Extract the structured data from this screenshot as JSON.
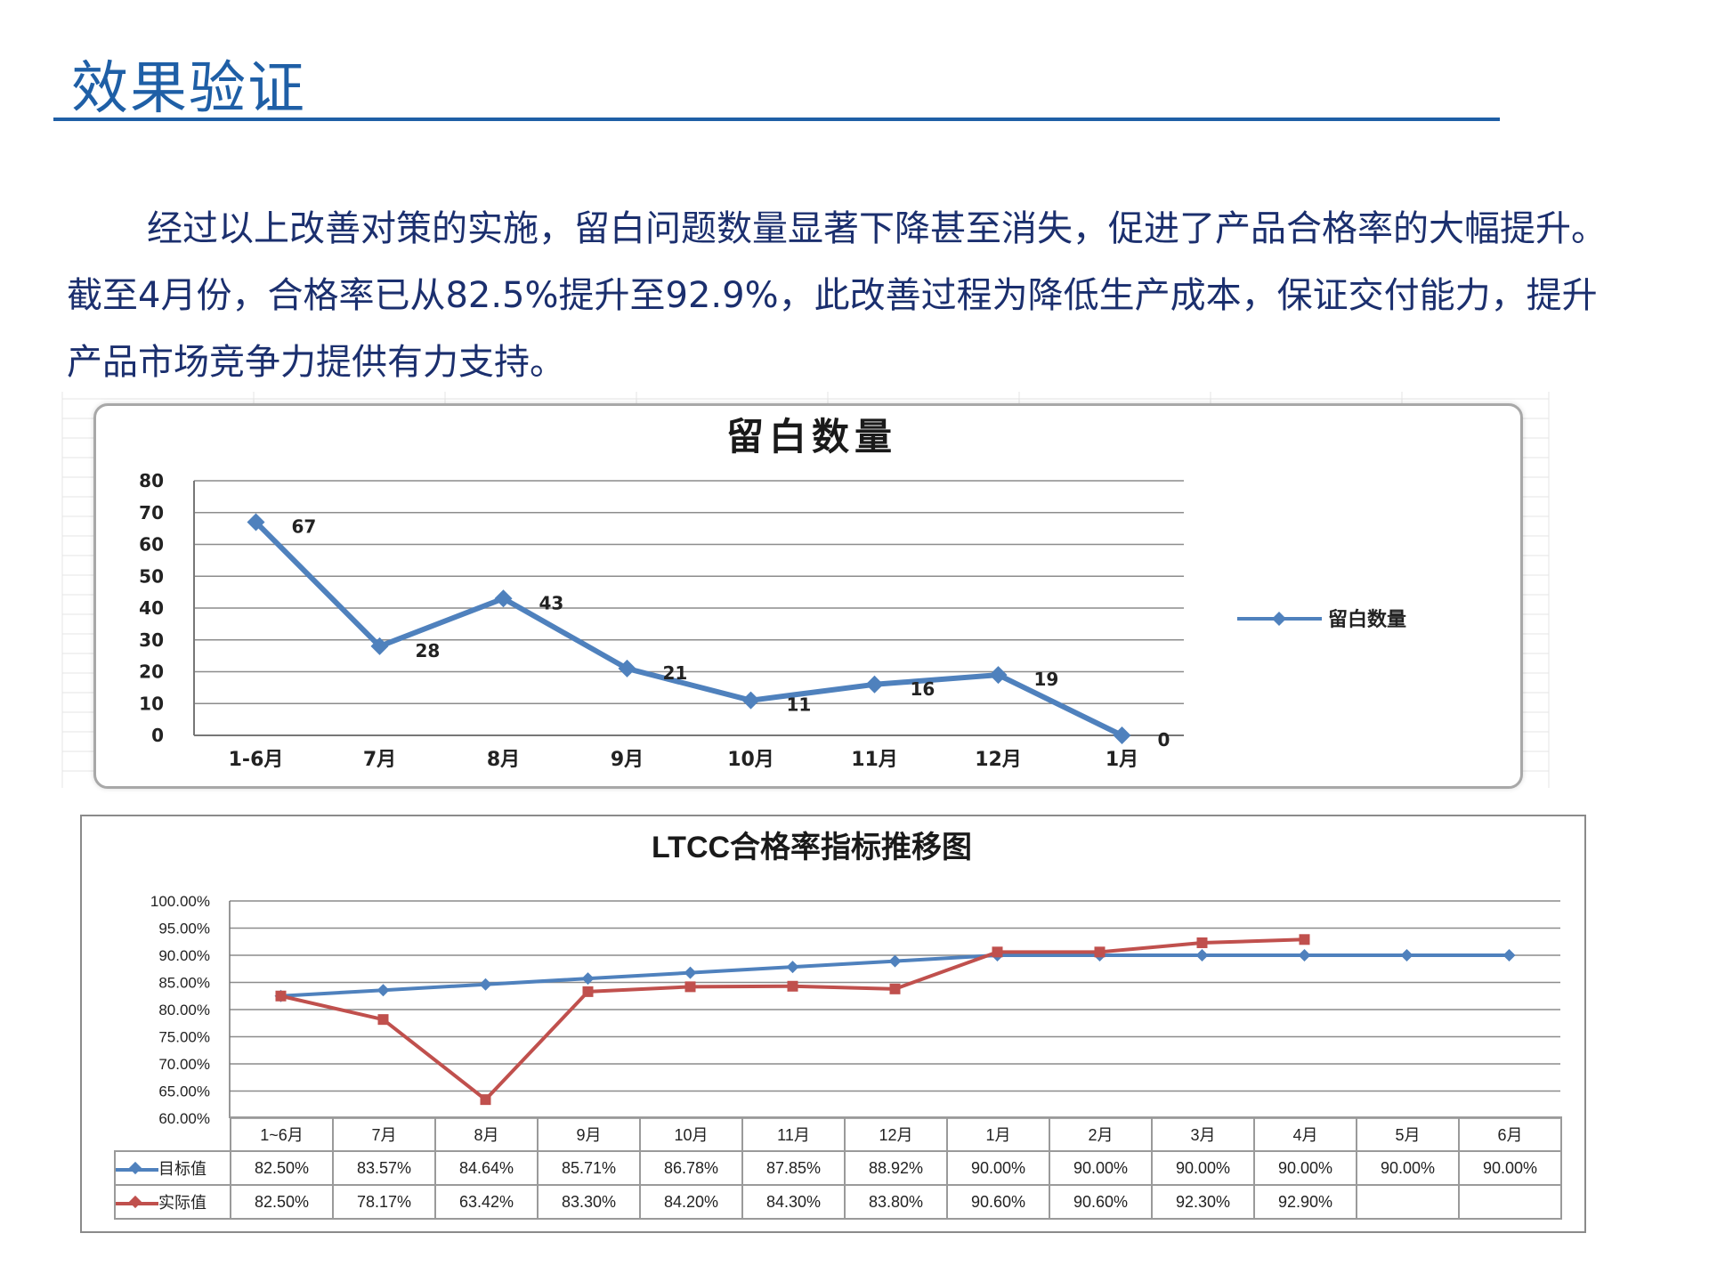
{
  "page": {
    "title": "效果验证",
    "paragraph": "经过以上改善对策的实施，留白问题数量显著下降甚至消失，促进了产品合格率的大幅提升。截至4月份，合格率已从82.5%提升至92.9%，此改善过程为降低生产成本，保证交付能力，提升产品市场竞争力提供有力支持。"
  },
  "colors": {
    "accent": "#1f5fa6",
    "text": "#1b2f6e",
    "series_blue": "#4f81bd",
    "series_red": "#c0504d"
  },
  "chart_data": [
    {
      "type": "line",
      "title": "留白数量",
      "categories": [
        "1-6月",
        "7月",
        "8月",
        "9月",
        "10月",
        "11月",
        "12月",
        "1月"
      ],
      "series": [
        {
          "name": "留白数量",
          "values": [
            67,
            28,
            43,
            21,
            11,
            16,
            19,
            0
          ]
        }
      ],
      "data_labels": [
        "67",
        "28",
        "43",
        "21",
        "11",
        "16",
        "19",
        "0"
      ],
      "ylim": [
        0,
        80
      ],
      "yticks": [
        "0",
        "10",
        "20",
        "30",
        "40",
        "50",
        "60",
        "70",
        "80"
      ],
      "grid": true,
      "legend": "right"
    },
    {
      "type": "line",
      "title": "LTCC合格率指标推移图",
      "categories": [
        "1~6月",
        "7月",
        "8月",
        "9月",
        "10月",
        "11月",
        "12月",
        "1月",
        "2月",
        "3月",
        "4月",
        "5月",
        "6月"
      ],
      "series": [
        {
          "name": "目标值",
          "values": [
            82.5,
            83.57,
            84.64,
            85.71,
            86.78,
            87.85,
            88.92,
            90.0,
            90.0,
            90.0,
            90.0,
            90.0,
            90.0
          ],
          "labels": [
            "82.50%",
            "83.57%",
            "84.64%",
            "85.71%",
            "86.78%",
            "87.85%",
            "88.92%",
            "90.00%",
            "90.00%",
            "90.00%",
            "90.00%",
            "90.00%",
            "90.00%"
          ]
        },
        {
          "name": "实际值",
          "values": [
            82.5,
            78.17,
            63.42,
            83.3,
            84.2,
            84.3,
            83.8,
            90.6,
            90.6,
            92.3,
            92.9,
            null,
            null
          ],
          "labels": [
            "82.50%",
            "78.17%",
            "63.42%",
            "83.30%",
            "84.20%",
            "84.30%",
            "83.80%",
            "90.60%",
            "90.60%",
            "92.30%",
            "92.90%",
            "",
            ""
          ]
        }
      ],
      "ylim": [
        60,
        100
      ],
      "yticks": [
        "60.00%",
        "65.00%",
        "70.00%",
        "75.00%",
        "80.00%",
        "85.00%",
        "90.00%",
        "95.00%",
        "100.00%"
      ],
      "grid": true,
      "legend": "data-table"
    }
  ]
}
